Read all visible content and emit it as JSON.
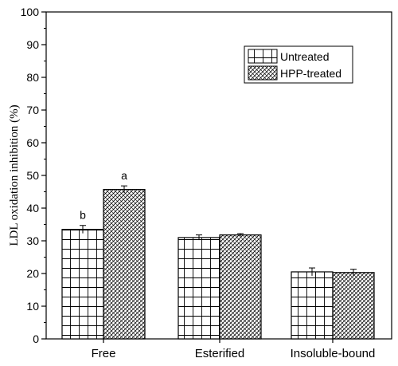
{
  "chart_data": {
    "type": "bar",
    "categories": [
      "Free",
      "Esterified",
      "Insoluble-bound"
    ],
    "series": [
      {
        "name": "Untreated",
        "values": [
          33.5,
          31.0,
          20.5
        ],
        "errors": [
          1.2,
          0.8,
          1.2
        ],
        "pattern": "grid"
      },
      {
        "name": "HPP-treated",
        "values": [
          45.7,
          31.8,
          20.3
        ],
        "errors": [
          1.1,
          0.4,
          1.0
        ],
        "pattern": "diagonal-crosshatch"
      }
    ],
    "significance_labels": [
      [
        "b",
        "",
        ""
      ],
      [
        "a",
        "",
        ""
      ]
    ],
    "title": "",
    "xlabel": "",
    "ylabel": "LDL oxidation inhibition (%)",
    "ylim": [
      0,
      100
    ],
    "yticks": [
      0,
      10,
      20,
      30,
      40,
      50,
      60,
      70,
      80,
      90,
      100
    ],
    "grid": false,
    "legend_position": "top-right"
  }
}
